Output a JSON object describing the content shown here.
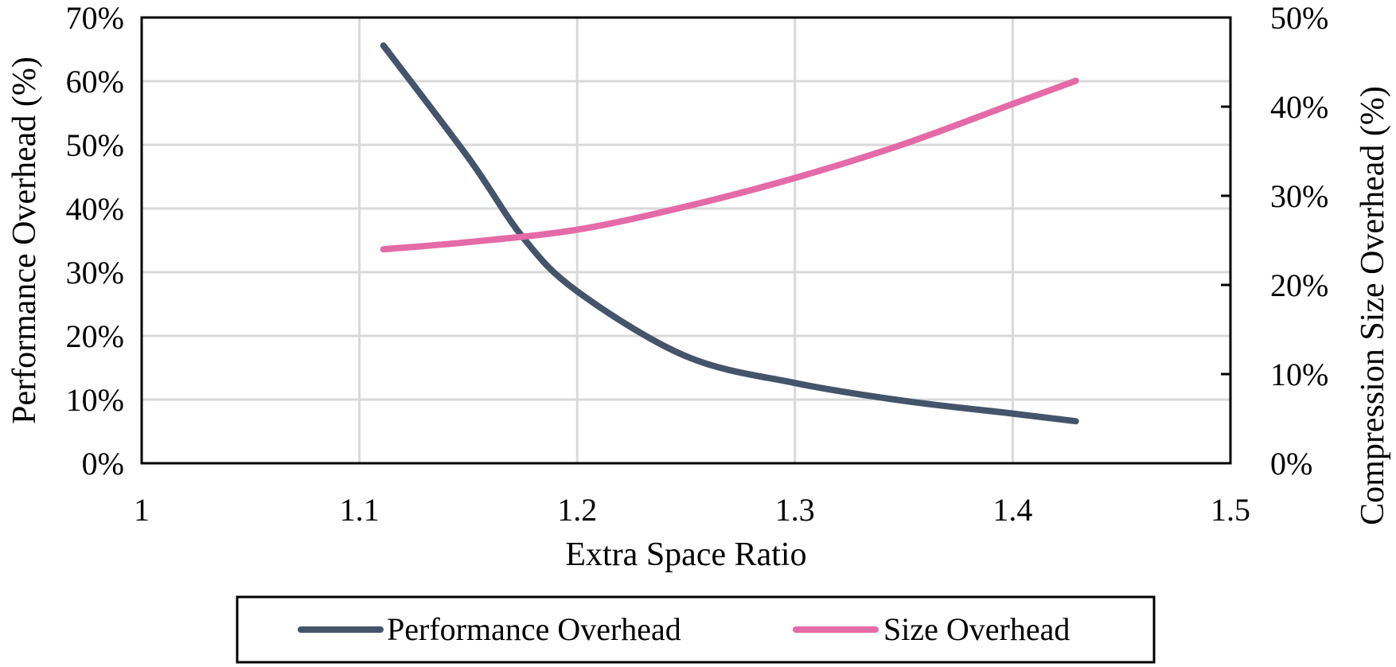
{
  "chart_data": {
    "type": "line",
    "xlabel": "Extra Space Ratio",
    "ylabel": "Performance Overhead (%)",
    "y2label": "Compression Size Overhead (%)",
    "xlim": [
      1,
      1.5
    ],
    "ylim": [
      0,
      70
    ],
    "y2lim": [
      0,
      50
    ],
    "x_ticks": [
      1,
      1.1,
      1.2,
      1.3,
      1.4,
      1.5
    ],
    "x_tick_labels": [
      "1",
      "1.1",
      "1.2",
      "1.3",
      "1.4",
      "1.5"
    ],
    "y_ticks": [
      0,
      10,
      20,
      30,
      40,
      50,
      60,
      70
    ],
    "y_tick_labels": [
      "0%",
      "10%",
      "20%",
      "30%",
      "40%",
      "50%",
      "60%",
      "70%"
    ],
    "y2_ticks": [
      0,
      10,
      20,
      30,
      40,
      50
    ],
    "y2_tick_labels": [
      "0%",
      "10%",
      "20%",
      "30%",
      "40%",
      "50%"
    ],
    "grid": true,
    "legend_position": "bottom",
    "series": [
      {
        "name": "Performance Overhead",
        "axis": "left",
        "color": "#44546a",
        "x": [
          1.111,
          1.15,
          1.175,
          1.2,
          1.25,
          1.3,
          1.35,
          1.4,
          1.429
        ],
        "values": [
          65.6,
          48.0,
          35.5,
          27.0,
          16.8,
          12.6,
          9.8,
          7.8,
          6.6
        ]
      },
      {
        "name": "Size Overhead",
        "axis": "right",
        "color": "#e46aa8",
        "x": [
          1.111,
          1.15,
          1.2,
          1.25,
          1.3,
          1.35,
          1.4,
          1.429
        ],
        "values": [
          24.0,
          24.8,
          26.2,
          28.8,
          32.0,
          35.8,
          40.3,
          42.9
        ]
      }
    ]
  }
}
